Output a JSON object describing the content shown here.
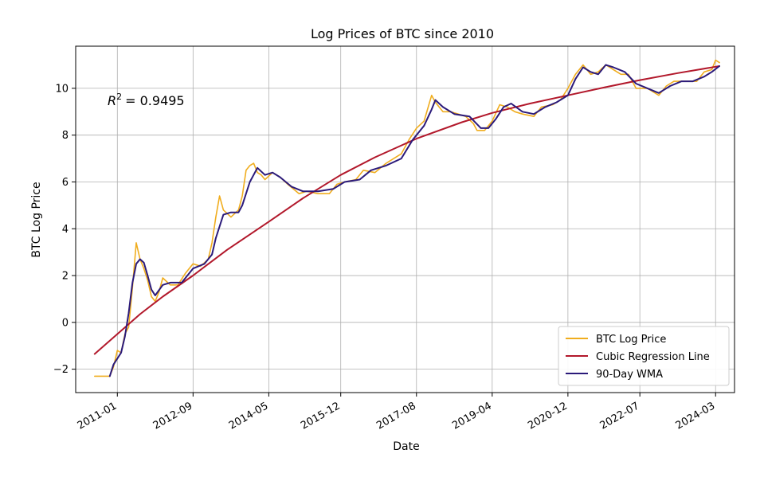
{
  "chart_data": {
    "type": "line",
    "title": "Log Prices of BTC since 2010",
    "xlabel": "Date",
    "ylabel": "BTC Log Price",
    "annotation": {
      "text": "R² = 0.9495",
      "symbol": "R",
      "exponent": "2",
      "value": "= 0.9495"
    },
    "xlim": [
      "2010-02",
      "2024-08"
    ],
    "ylim": [
      -3.0,
      11.8
    ],
    "x_ticks": [
      "2011-01",
      "2012-09",
      "2014-05",
      "2015-12",
      "2017-08",
      "2019-04",
      "2020-12",
      "2022-07",
      "2024-03"
    ],
    "y_ticks": [
      -2,
      0,
      2,
      4,
      6,
      8,
      10
    ],
    "grid": true,
    "legend": {
      "position": "lower-right",
      "entries": [
        "BTC Log Price",
        "Cubic Regression Line",
        "90-Day WMA"
      ]
    },
    "series": [
      {
        "name": "BTC Log Price",
        "color": "#f0ad1e",
        "points": [
          [
            "2010-07",
            -2.3
          ],
          [
            "2010-09",
            -2.3
          ],
          [
            "2010-11",
            -2.3
          ],
          [
            "2010-12",
            -1.9
          ],
          [
            "2011-01",
            -1.2
          ],
          [
            "2011-02",
            -1.3
          ],
          [
            "2011-03",
            -0.5
          ],
          [
            "2011-04",
            -0.2
          ],
          [
            "2011-05",
            1.5
          ],
          [
            "2011-06",
            3.4
          ],
          [
            "2011-07",
            2.7
          ],
          [
            "2011-08",
            2.3
          ],
          [
            "2011-09",
            1.8
          ],
          [
            "2011-10",
            1.1
          ],
          [
            "2011-11",
            0.9
          ],
          [
            "2011-12",
            1.3
          ],
          [
            "2012-01",
            1.9
          ],
          [
            "2012-03",
            1.6
          ],
          [
            "2012-05",
            1.6
          ],
          [
            "2012-07",
            2.1
          ],
          [
            "2012-09",
            2.5
          ],
          [
            "2012-11",
            2.4
          ],
          [
            "2013-01",
            2.7
          ],
          [
            "2013-02",
            3.4
          ],
          [
            "2013-03",
            4.5
          ],
          [
            "2013-04",
            5.4
          ],
          [
            "2013-05",
            4.8
          ],
          [
            "2013-07",
            4.5
          ],
          [
            "2013-09",
            4.8
          ],
          [
            "2013-10",
            5.4
          ],
          [
            "2013-11",
            6.5
          ],
          [
            "2013-12",
            6.7
          ],
          [
            "2014-01",
            6.8
          ],
          [
            "2014-02",
            6.4
          ],
          [
            "2014-03",
            6.3
          ],
          [
            "2014-04",
            6.1
          ],
          [
            "2014-06",
            6.4
          ],
          [
            "2014-08",
            6.2
          ],
          [
            "2014-10",
            5.9
          ],
          [
            "2015-01",
            5.5
          ],
          [
            "2015-03",
            5.6
          ],
          [
            "2015-06",
            5.5
          ],
          [
            "2015-09",
            5.5
          ],
          [
            "2015-11",
            5.9
          ],
          [
            "2016-01",
            6.0
          ],
          [
            "2016-04",
            6.1
          ],
          [
            "2016-06",
            6.5
          ],
          [
            "2016-09",
            6.4
          ],
          [
            "2016-12",
            6.8
          ],
          [
            "2017-02",
            7.0
          ],
          [
            "2017-04",
            7.2
          ],
          [
            "2017-06",
            7.8
          ],
          [
            "2017-08",
            8.3
          ],
          [
            "2017-10",
            8.6
          ],
          [
            "2017-12",
            9.7
          ],
          [
            "2018-01",
            9.4
          ],
          [
            "2018-03",
            9.0
          ],
          [
            "2018-05",
            9.0
          ],
          [
            "2018-07",
            8.9
          ],
          [
            "2018-09",
            8.8
          ],
          [
            "2018-11",
            8.5
          ],
          [
            "2018-12",
            8.2
          ],
          [
            "2019-02",
            8.2
          ],
          [
            "2019-04",
            8.6
          ],
          [
            "2019-06",
            9.3
          ],
          [
            "2019-08",
            9.2
          ],
          [
            "2019-10",
            9.0
          ],
          [
            "2019-12",
            8.9
          ],
          [
            "2020-03",
            8.8
          ],
          [
            "2020-05",
            9.2
          ],
          [
            "2020-08",
            9.3
          ],
          [
            "2020-10",
            9.5
          ],
          [
            "2020-12",
            10.0
          ],
          [
            "2021-02",
            10.6
          ],
          [
            "2021-04",
            11.0
          ],
          [
            "2021-06",
            10.6
          ],
          [
            "2021-08",
            10.7
          ],
          [
            "2021-10",
            11.0
          ],
          [
            "2021-12",
            10.8
          ],
          [
            "2022-02",
            10.6
          ],
          [
            "2022-04",
            10.6
          ],
          [
            "2022-06",
            10.0
          ],
          [
            "2022-09",
            10.0
          ],
          [
            "2022-12",
            9.7
          ],
          [
            "2023-02",
            10.1
          ],
          [
            "2023-04",
            10.3
          ],
          [
            "2023-07",
            10.3
          ],
          [
            "2023-10",
            10.3
          ],
          [
            "2023-12",
            10.7
          ],
          [
            "2024-02",
            10.8
          ],
          [
            "2024-03",
            11.2
          ],
          [
            "2024-04",
            11.1
          ]
        ]
      },
      {
        "name": "Cubic Regression Line",
        "color": "#b2182b",
        "points": [
          [
            "2010-07",
            -1.35
          ],
          [
            "2011-01",
            -0.5
          ],
          [
            "2011-07",
            0.35
          ],
          [
            "2012-01",
            1.1
          ],
          [
            "2012-09",
            2.0
          ],
          [
            "2013-06",
            3.1
          ],
          [
            "2014-05",
            4.3
          ],
          [
            "2015-02",
            5.3
          ],
          [
            "2015-12",
            6.3
          ],
          [
            "2016-09",
            7.05
          ],
          [
            "2017-08",
            7.85
          ],
          [
            "2018-08",
            8.55
          ],
          [
            "2019-04",
            8.95
          ],
          [
            "2020-02",
            9.35
          ],
          [
            "2020-12",
            9.7
          ],
          [
            "2021-10",
            10.05
          ],
          [
            "2022-07",
            10.35
          ],
          [
            "2023-05",
            10.65
          ],
          [
            "2024-04",
            10.95
          ]
        ]
      },
      {
        "name": "90-Day WMA",
        "color": "#2b1a7a",
        "points": [
          [
            "2010-11",
            -2.3
          ],
          [
            "2010-12",
            -1.8
          ],
          [
            "2011-02",
            -1.3
          ],
          [
            "2011-03",
            -0.6
          ],
          [
            "2011-04",
            0.4
          ],
          [
            "2011-05",
            1.7
          ],
          [
            "2011-06",
            2.5
          ],
          [
            "2011-07",
            2.7
          ],
          [
            "2011-08",
            2.55
          ],
          [
            "2011-09",
            2.0
          ],
          [
            "2011-10",
            1.4
          ],
          [
            "2011-11",
            1.15
          ],
          [
            "2012-01",
            1.6
          ],
          [
            "2012-03",
            1.7
          ],
          [
            "2012-06",
            1.7
          ],
          [
            "2012-09",
            2.3
          ],
          [
            "2012-12",
            2.5
          ],
          [
            "2013-02",
            2.9
          ],
          [
            "2013-03",
            3.6
          ],
          [
            "2013-05",
            4.6
          ],
          [
            "2013-07",
            4.7
          ],
          [
            "2013-09",
            4.7
          ],
          [
            "2013-10",
            5.0
          ],
          [
            "2013-12",
            6.0
          ],
          [
            "2014-02",
            6.6
          ],
          [
            "2014-04",
            6.3
          ],
          [
            "2014-06",
            6.4
          ],
          [
            "2014-08",
            6.2
          ],
          [
            "2014-11",
            5.8
          ],
          [
            "2015-02",
            5.6
          ],
          [
            "2015-06",
            5.6
          ],
          [
            "2015-10",
            5.7
          ],
          [
            "2016-01",
            6.0
          ],
          [
            "2016-05",
            6.1
          ],
          [
            "2016-08",
            6.5
          ],
          [
            "2016-12",
            6.7
          ],
          [
            "2017-04",
            7.0
          ],
          [
            "2017-07",
            7.8
          ],
          [
            "2017-10",
            8.4
          ],
          [
            "2017-12",
            9.1
          ],
          [
            "2018-01",
            9.5
          ],
          [
            "2018-03",
            9.2
          ],
          [
            "2018-06",
            8.9
          ],
          [
            "2018-10",
            8.8
          ],
          [
            "2019-01",
            8.3
          ],
          [
            "2019-03",
            8.3
          ],
          [
            "2019-05",
            8.7
          ],
          [
            "2019-07",
            9.2
          ],
          [
            "2019-09",
            9.35
          ],
          [
            "2019-12",
            9.0
          ],
          [
            "2020-03",
            8.9
          ],
          [
            "2020-06",
            9.2
          ],
          [
            "2020-09",
            9.4
          ],
          [
            "2020-12",
            9.7
          ],
          [
            "2021-02",
            10.4
          ],
          [
            "2021-04",
            10.9
          ],
          [
            "2021-06",
            10.7
          ],
          [
            "2021-08",
            10.6
          ],
          [
            "2021-10",
            11.0
          ],
          [
            "2021-12",
            10.9
          ],
          [
            "2022-03",
            10.7
          ],
          [
            "2022-06",
            10.2
          ],
          [
            "2022-09",
            10.0
          ],
          [
            "2022-12",
            9.8
          ],
          [
            "2023-03",
            10.1
          ],
          [
            "2023-06",
            10.3
          ],
          [
            "2023-09",
            10.3
          ],
          [
            "2023-12",
            10.5
          ],
          [
            "2024-02",
            10.7
          ],
          [
            "2024-04",
            10.95
          ]
        ]
      }
    ]
  }
}
